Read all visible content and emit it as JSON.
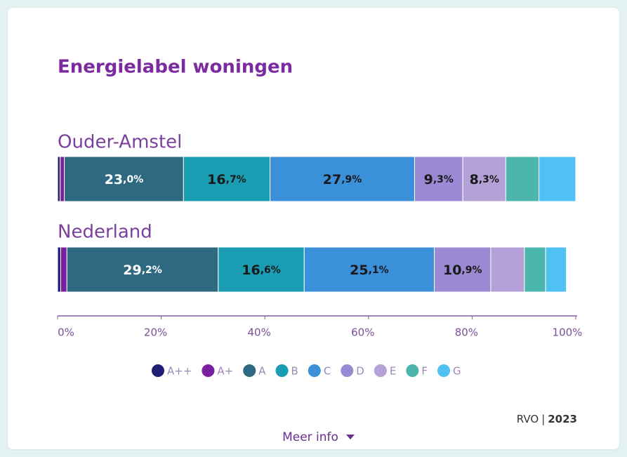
{
  "chart_data": {
    "type": "stacked-bar-horizontal",
    "title": "Energielabel woningen",
    "categories": [
      "Ouder-Amstel",
      "Nederland"
    ],
    "series": [
      {
        "name": "A++",
        "color": "#1f1f75",
        "values": [
          0.5,
          0.6
        ]
      },
      {
        "name": "A+",
        "color": "#7a1fa0",
        "values": [
          0.8,
          1.2
        ]
      },
      {
        "name": "A",
        "color": "#2d6a82",
        "values": [
          23.0,
          29.2
        ],
        "value_labels": [
          "23,0%",
          "29,2%"
        ],
        "label_color": "#ffffff"
      },
      {
        "name": "B",
        "color": "#1a9cb2",
        "values": [
          16.7,
          16.6
        ],
        "value_labels": [
          "16,7%",
          "16,6%"
        ],
        "label_color": "#1a1a1a"
      },
      {
        "name": "C",
        "color": "#3b90da",
        "values": [
          27.9,
          25.1
        ],
        "value_labels": [
          "27,9%",
          "25,1%"
        ],
        "label_color": "#1a1a1a"
      },
      {
        "name": "D",
        "color": "#9a8ad3",
        "values": [
          9.3,
          10.9
        ],
        "value_labels": [
          "9,3%",
          "10,9%"
        ],
        "label_color": "#1a1a1a"
      },
      {
        "name": "E",
        "color": "#b3a1d8",
        "values": [
          8.3,
          6.5
        ],
        "value_labels": [
          "8,3%",
          null
        ],
        "label_color": "#1a1a1a"
      },
      {
        "name": "F",
        "color": "#4db6ac",
        "values": [
          6.4,
          4.1
        ]
      },
      {
        "name": "G",
        "color": "#4fc1f2",
        "values": [
          7.1,
          4.0
        ]
      }
    ],
    "xlim": [
      0,
      100
    ],
    "xticks": [
      {
        "value": 0,
        "label": "0%"
      },
      {
        "value": 20,
        "label": "20%"
      },
      {
        "value": 40,
        "label": "40%"
      },
      {
        "value": 60,
        "label": "60%"
      },
      {
        "value": 80,
        "label": "80%"
      },
      {
        "value": 100,
        "label": "100%"
      }
    ],
    "legend": "bottom",
    "source": "RVO",
    "year": "2023",
    "more_info": "Meer info"
  }
}
